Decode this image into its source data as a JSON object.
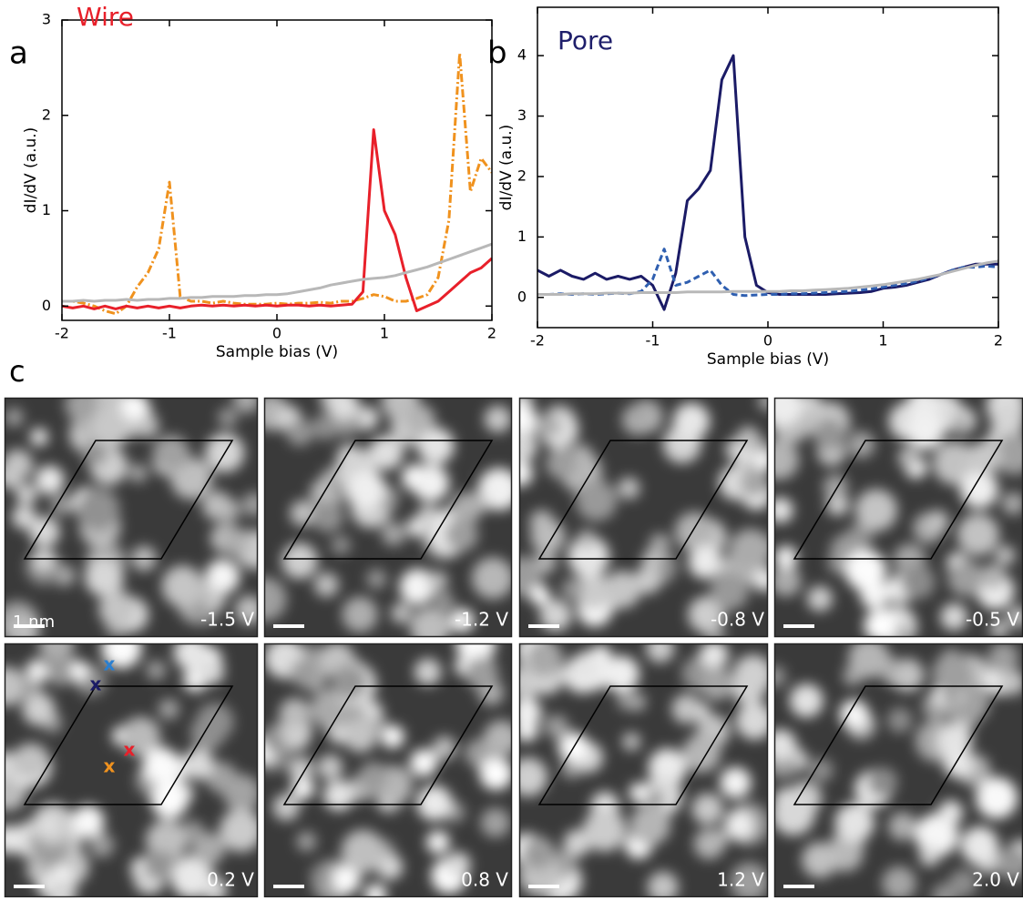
{
  "chart_data": [
    {
      "type": "line",
      "panel_label": "a",
      "title": "Wire",
      "title_color": "#e8202a",
      "x_label": "Sample bias (V)",
      "y_label": "dI/dV (a.u.)",
      "x": [
        -2,
        -1.9,
        -1.8,
        -1.7,
        -1.6,
        -1.5,
        -1.4,
        -1.3,
        -1.2,
        -1.1,
        -1,
        -0.9,
        -0.8,
        -0.7,
        -0.6,
        -0.5,
        -0.4,
        -0.3,
        -0.2,
        -0.1,
        0,
        0.1,
        0.2,
        0.3,
        0.4,
        0.5,
        0.6,
        0.7,
        0.8,
        0.9,
        1,
        1.1,
        1.2,
        1.3,
        1.4,
        1.5,
        1.6,
        1.7,
        1.8,
        1.9,
        2
      ],
      "series": [
        {
          "color": "#f0921e",
          "dash": "dashdot",
          "values": [
            0.05,
            0.05,
            0.03,
            0,
            -0.05,
            -0.08,
            0,
            0.2,
            0.35,
            0.6,
            1.3,
            0.1,
            0.05,
            0.05,
            0.03,
            0.05,
            0.03,
            0.02,
            0.02,
            0.02,
            0.03,
            0.02,
            0.03,
            0.03,
            0.04,
            0.03,
            0.05,
            0.05,
            0.08,
            0.12,
            0.1,
            0.05,
            0.05,
            0.08,
            0.12,
            0.3,
            0.9,
            2.65,
            1.2,
            1.55,
            1.4
          ]
        },
        {
          "color": "#e8202a",
          "dash": "solid",
          "values": [
            0,
            -0.02,
            0,
            -0.03,
            0,
            -0.03,
            0,
            -0.02,
            0,
            -0.02,
            0,
            -0.02,
            0,
            0.01,
            0,
            0.01,
            0,
            0.01,
            0,
            0.01,
            0,
            0.01,
            0.01,
            0,
            0.01,
            0,
            0.01,
            0.02,
            0.15,
            1.85,
            1.0,
            0.75,
            0.3,
            -0.05,
            0,
            0.05,
            0.15,
            0.25,
            0.35,
            0.4,
            0.5
          ]
        },
        {
          "color": "#b8b8b8",
          "dash": "solid",
          "values": [
            0.05,
            0.05,
            0.06,
            0.05,
            0.06,
            0.06,
            0.07,
            0.06,
            0.07,
            0.07,
            0.08,
            0.08,
            0.09,
            0.09,
            0.1,
            0.1,
            0.1,
            0.11,
            0.11,
            0.12,
            0.12,
            0.13,
            0.15,
            0.17,
            0.19,
            0.22,
            0.24,
            0.26,
            0.28,
            0.29,
            0.3,
            0.32,
            0.35,
            0.38,
            0.41,
            0.45,
            0.49,
            0.53,
            0.57,
            0.61,
            0.65
          ]
        }
      ],
      "xlim": [
        -2,
        2
      ],
      "xticks": [
        -2,
        -1,
        0,
        1,
        2
      ],
      "ylim": [
        -0.15,
        3
      ],
      "yticks": [
        0,
        1,
        2,
        3
      ]
    },
    {
      "type": "line",
      "panel_label": "b",
      "title": "Pore",
      "title_color": "#1f1f6b",
      "x_label": "Sample bias (V)",
      "y_label": "dI/dV (a.u.)",
      "x": [
        -2,
        -1.9,
        -1.8,
        -1.7,
        -1.6,
        -1.5,
        -1.4,
        -1.3,
        -1.2,
        -1.1,
        -1,
        -0.9,
        -0.8,
        -0.7,
        -0.6,
        -0.5,
        -0.4,
        -0.3,
        -0.2,
        -0.1,
        0,
        0.1,
        0.2,
        0.3,
        0.4,
        0.5,
        0.6,
        0.7,
        0.8,
        0.9,
        1,
        1.1,
        1.2,
        1.3,
        1.4,
        1.5,
        1.6,
        1.7,
        1.8,
        1.9,
        2
      ],
      "series": [
        {
          "color": "#1b1b66",
          "dash": "solid",
          "values": [
            0.45,
            0.35,
            0.45,
            0.35,
            0.3,
            0.4,
            0.3,
            0.35,
            0.3,
            0.35,
            0.2,
            -0.2,
            0.4,
            1.6,
            1.8,
            2.1,
            3.6,
            4.0,
            1.0,
            0.2,
            0.08,
            0.05,
            0.05,
            0.05,
            0.05,
            0.05,
            0.06,
            0.07,
            0.08,
            0.1,
            0.15,
            0.17,
            0.2,
            0.25,
            0.3,
            0.38,
            0.45,
            0.5,
            0.55,
            0.55,
            0.55
          ]
        },
        {
          "color": "#2f5fb0",
          "dash": "dashed",
          "values": [
            0.05,
            0.05,
            0.06,
            0.05,
            0.06,
            0.05,
            0.06,
            0.07,
            0.06,
            0.1,
            0.3,
            0.8,
            0.2,
            0.25,
            0.35,
            0.45,
            0.2,
            0.05,
            0.03,
            0.04,
            0.05,
            0.05,
            0.06,
            0.06,
            0.07,
            0.08,
            0.09,
            0.1,
            0.12,
            0.14,
            0.17,
            0.2,
            0.23,
            0.27,
            0.32,
            0.38,
            0.45,
            0.5,
            0.5,
            0.52,
            0.5
          ]
        },
        {
          "color": "#b8b8b8",
          "dash": "solid",
          "values": [
            0.05,
            0.05,
            0.05,
            0.06,
            0.06,
            0.06,
            0.07,
            0.07,
            0.07,
            0.08,
            0.08,
            0.08,
            0.08,
            0.09,
            0.09,
            0.09,
            0.09,
            0.1,
            0.1,
            0.1,
            0.1,
            0.1,
            0.11,
            0.11,
            0.12,
            0.13,
            0.14,
            0.15,
            0.17,
            0.19,
            0.21,
            0.24,
            0.27,
            0.3,
            0.34,
            0.38,
            0.43,
            0.48,
            0.53,
            0.57,
            0.6
          ]
        }
      ],
      "xlim": [
        -2,
        2
      ],
      "xticks": [
        -2,
        -1,
        0,
        1,
        2
      ],
      "ylim": [
        -0.5,
        4.8
      ],
      "yticks": [
        0,
        1,
        2,
        3,
        4
      ]
    }
  ],
  "panel_c": {
    "label": "c",
    "scale_bar": "1 nm",
    "images": [
      "-1.5 V",
      "-1.2 V",
      "-0.8 V",
      "-0.5 V",
      "0.2 V",
      "0.8 V",
      "1.2 V",
      "2.0 V"
    ],
    "markers": [
      {
        "text": "x",
        "color": "#2a7fd0"
      },
      {
        "text": "x",
        "color": "#1b1b66"
      },
      {
        "text": "x",
        "color": "#e8202a"
      },
      {
        "text": "x",
        "color": "#f0921e"
      }
    ]
  }
}
